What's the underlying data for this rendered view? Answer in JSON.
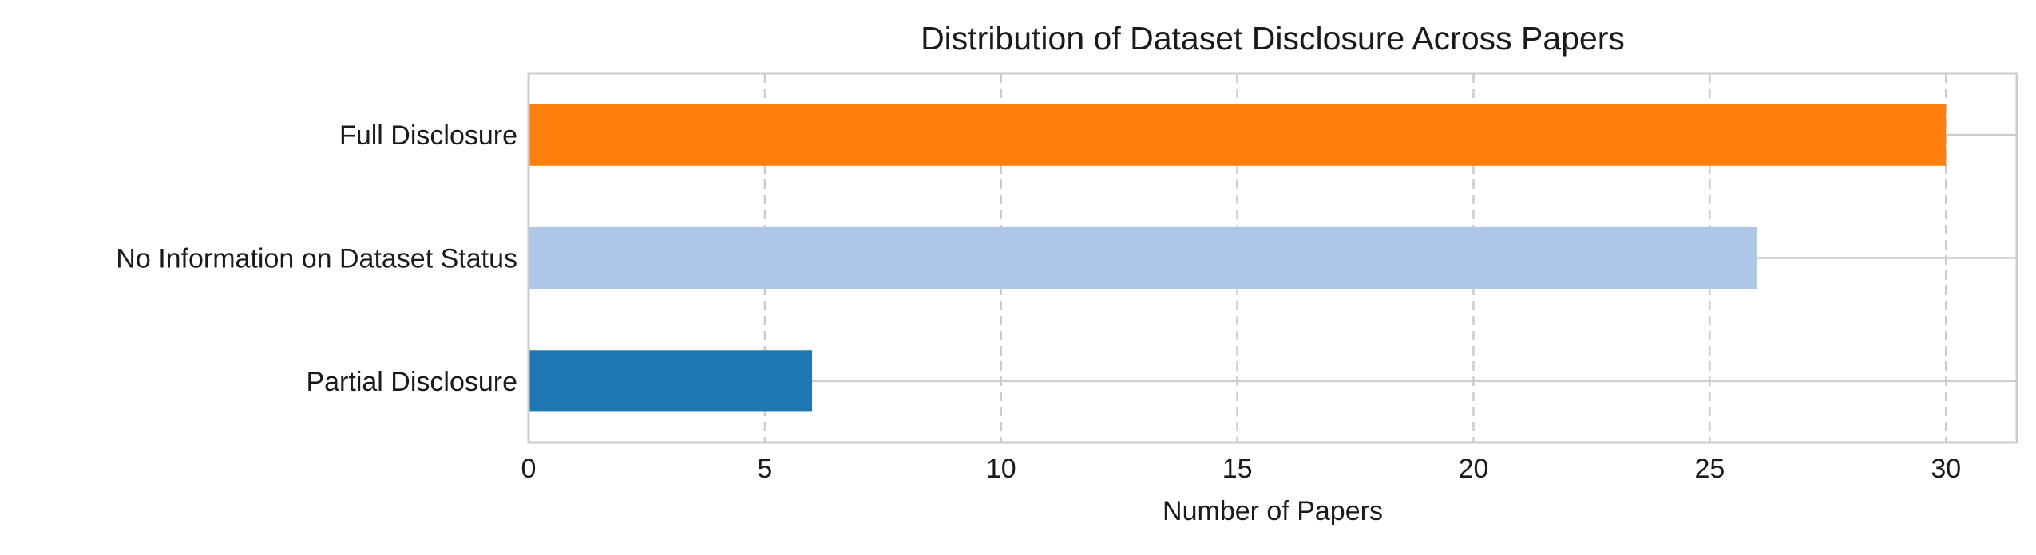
{
  "chart_data": {
    "type": "bar",
    "orientation": "horizontal",
    "title": "Distribution of Dataset Disclosure Across Papers",
    "xlabel": "Number of Papers",
    "ylabel": "",
    "categories": [
      "Full Disclosure",
      "No Information on Dataset Status",
      "Partial Disclosure"
    ],
    "values": [
      30,
      26,
      6
    ],
    "colors": [
      "#ff7f0e",
      "#aec7e8",
      "#1f77b4"
    ],
    "xlim": [
      0,
      31.5
    ],
    "xticks": [
      0,
      5,
      10,
      15,
      20,
      25,
      30
    ],
    "grid": true,
    "grid_color": "#cccccc",
    "axes_edge_color": "#cccccc"
  }
}
